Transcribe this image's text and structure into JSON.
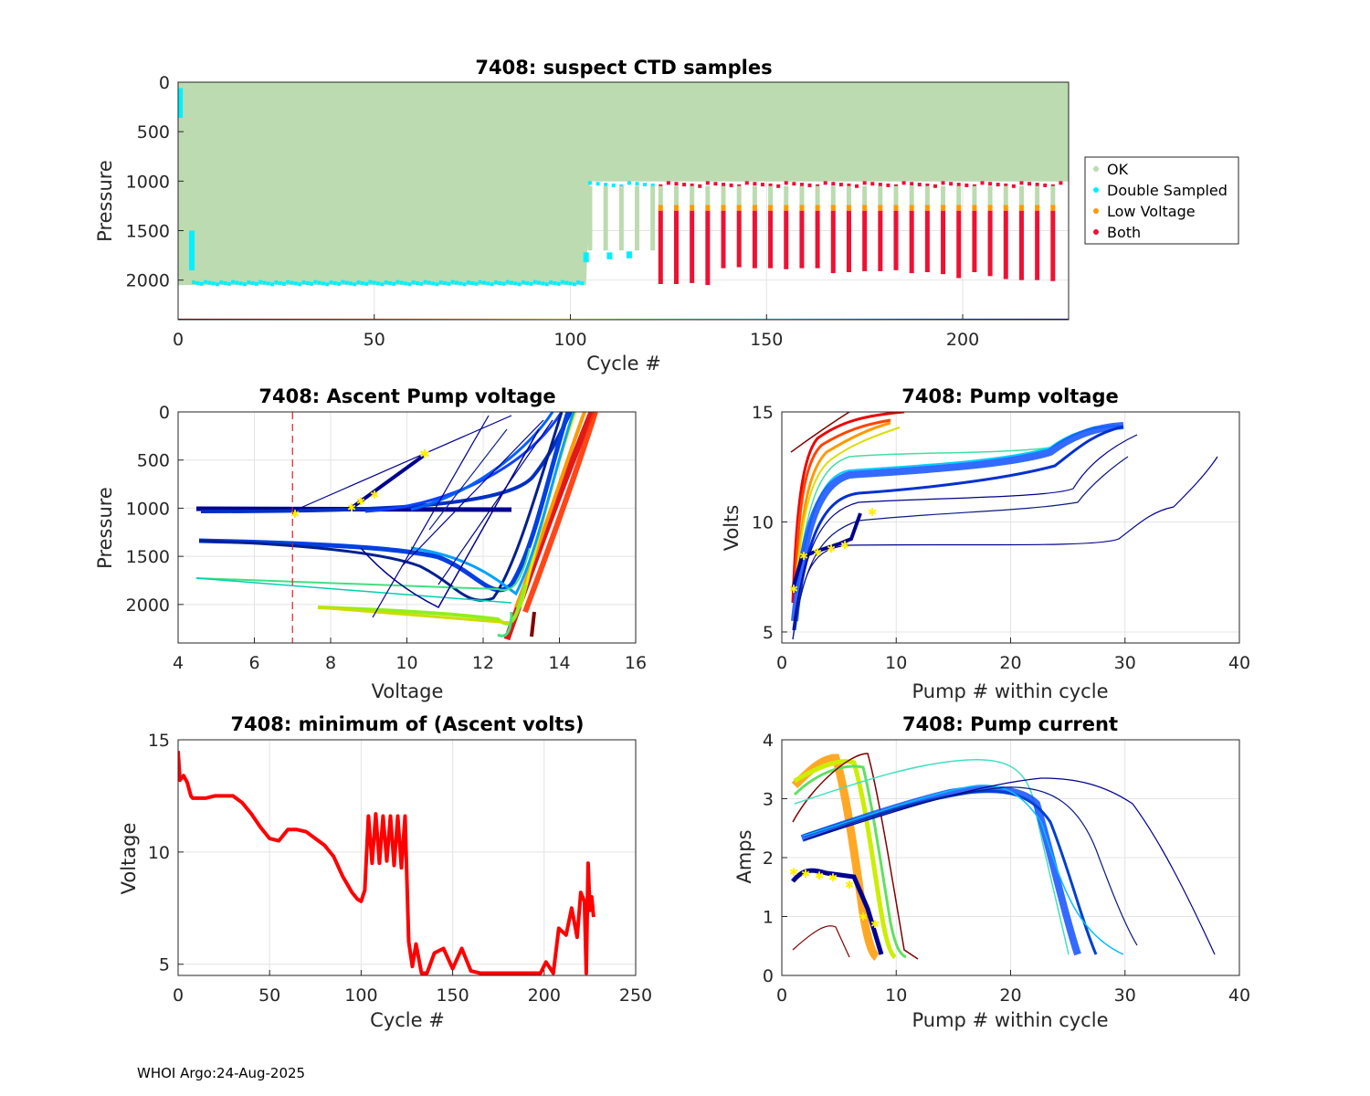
{
  "footer": "WHOI Argo:24-Aug-2025",
  "colors": {
    "ok": "#bcdbb0",
    "double_sampled": "#00f0ff",
    "low_voltage": "#ff9900",
    "both": "#ee1133",
    "min_voltage_line": "#ff0000",
    "threshold_line": "#dd2222",
    "marker_star": "#ffee00"
  },
  "chart_data": [
    {
      "id": "suspect",
      "type": "scatter",
      "title": "7408: suspect CTD samples",
      "xlabel": "Cycle #",
      "ylabel": "Pressure",
      "xlim": [
        0,
        227
      ],
      "ylim": [
        2400,
        0
      ],
      "xticks": [
        0,
        50,
        100,
        150,
        200
      ],
      "yticks": [
        0,
        500,
        1000,
        1500,
        2000
      ],
      "legend": {
        "position": "outside-right",
        "entries": [
          "OK",
          "Double Sampled",
          "Low Voltage",
          "Both"
        ]
      },
      "ok_region": {
        "cycles": [
          0,
          227
        ],
        "pressure_top": 0,
        "bottom_by_cycle": [
          [
            0,
            2050
          ],
          [
            104,
            2050
          ],
          [
            105,
            1000
          ],
          [
            227,
            1000
          ]
        ]
      },
      "double_sampled_segments": [
        {
          "cycle": 0.5,
          "p_from": 60,
          "p_to": 360
        },
        {
          "cycle": 3.5,
          "p_from": 1500,
          "p_to": 1900
        },
        {
          "cycle": 104,
          "p_from": 1720,
          "p_to": 1820
        },
        {
          "cycle": 110,
          "p_from": 1720,
          "p_to": 1790
        },
        {
          "cycle": 115,
          "p_from": 1710,
          "p_to": 1780
        }
      ],
      "double_sampled_bottom_band": {
        "cycles": [
          4,
          103
        ],
        "pressure": 2010
      },
      "deep_profile_bottom": 2050,
      "shallow_profile_top": 1000,
      "both_bar_cycles": [
        123,
        127,
        131,
        135,
        139,
        143,
        147,
        151,
        155,
        159,
        163,
        167,
        171,
        175,
        179,
        183,
        187,
        191,
        195,
        199,
        203,
        207,
        211,
        215,
        219,
        223
      ],
      "both_bar_bottoms": [
        2040,
        2040,
        2030,
        2050,
        1880,
        1870,
        1880,
        1880,
        1890,
        1880,
        1880,
        1930,
        1920,
        1910,
        1910,
        1900,
        1930,
        1920,
        1940,
        1980,
        1920,
        1960,
        1990,
        2000,
        2000,
        2010
      ]
    },
    {
      "id": "ascent_voltage",
      "type": "scatter",
      "title": "7408: Ascent Pump voltage",
      "xlabel": "Voltage",
      "ylabel": "Pressure",
      "xlim": [
        4,
        16
      ],
      "ylim": [
        2400,
        0
      ],
      "xticks": [
        4,
        6,
        8,
        10,
        12,
        14,
        16
      ],
      "yticks": [
        0,
        500,
        1000,
        1500,
        2000
      ],
      "threshold_voltage": 7
    },
    {
      "id": "pump_voltage",
      "type": "line",
      "title": "7408: Pump voltage",
      "xlabel": "Pump # within cycle",
      "ylabel": "Volts",
      "xlim": [
        0,
        40
      ],
      "ylim": [
        4.5,
        15
      ],
      "xticks": [
        0,
        10,
        20,
        30,
        40
      ],
      "yticks": [
        5,
        10,
        15
      ]
    },
    {
      "id": "min_voltage",
      "type": "line",
      "title": "7408: minimum of (Ascent volts)",
      "xlabel": "Cycle #",
      "ylabel": "Voltage",
      "xlim": [
        0,
        250
      ],
      "ylim": [
        4.5,
        15
      ],
      "xticks": [
        0,
        50,
        100,
        150,
        200,
        250
      ],
      "yticks": [
        5,
        10,
        15
      ],
      "x": [
        0,
        1,
        3,
        5,
        7,
        8,
        10,
        15,
        20,
        25,
        30,
        35,
        40,
        45,
        50,
        55,
        60,
        65,
        70,
        75,
        80,
        85,
        90,
        95,
        98,
        100,
        102,
        104,
        106,
        108,
        110,
        112,
        114,
        116,
        118,
        120,
        122,
        124,
        126,
        128,
        130,
        133,
        136,
        140,
        145,
        150,
        155,
        160,
        165,
        170,
        180,
        190,
        198,
        201,
        205,
        208,
        212,
        215,
        218,
        220,
        222,
        223,
        224,
        225,
        226,
        227
      ],
      "y": [
        14.5,
        13.2,
        13.4,
        13.1,
        12.5,
        12.4,
        12.4,
        12.4,
        12.5,
        12.5,
        12.5,
        12.2,
        11.7,
        11.1,
        10.6,
        10.5,
        11.0,
        11.0,
        10.9,
        10.6,
        10.3,
        9.8,
        8.9,
        8.2,
        7.9,
        7.8,
        8.3,
        11.6,
        9.5,
        11.7,
        9.5,
        11.6,
        9.6,
        11.6,
        9.4,
        11.6,
        9.3,
        11.6,
        6.0,
        4.9,
        5.9,
        4.6,
        4.6,
        5.5,
        5.7,
        4.8,
        5.7,
        4.7,
        4.6,
        4.6,
        4.6,
        4.6,
        4.6,
        5.1,
        4.6,
        6.6,
        6.3,
        7.5,
        6.2,
        8.2,
        7.8,
        4.6,
        9.5,
        7.4,
        8.0,
        7.1
      ]
    },
    {
      "id": "pump_current",
      "type": "line",
      "title": "7408: Pump current",
      "xlabel": "Pump # within cycle",
      "ylabel": "Amps",
      "xlim": [
        0,
        40
      ],
      "ylim": [
        0,
        4
      ],
      "xticks": [
        0,
        10,
        20,
        30,
        40
      ],
      "yticks": [
        0,
        1,
        2,
        3,
        4
      ]
    }
  ]
}
